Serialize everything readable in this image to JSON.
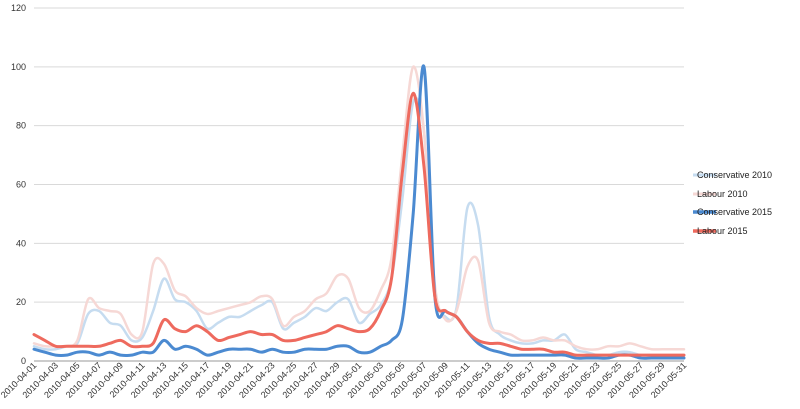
{
  "chart_data": {
    "type": "line",
    "title": "",
    "xlabel": "",
    "ylabel": "",
    "ylim": [
      0,
      120
    ],
    "yticks": [
      0,
      20,
      40,
      60,
      80,
      100,
      120
    ],
    "grid": "horizontal",
    "legend_position": "right",
    "x": [
      "2010-04-01",
      "2010-04-02",
      "2010-04-03",
      "2010-04-04",
      "2010-04-05",
      "2010-04-06",
      "2010-04-07",
      "2010-04-08",
      "2010-04-09",
      "2010-04-10",
      "2010-04-11",
      "2010-04-12",
      "2010-04-13",
      "2010-04-14",
      "2010-04-15",
      "2010-04-16",
      "2010-04-17",
      "2010-04-18",
      "2010-04-19",
      "2010-04-20",
      "2010-04-21",
      "2010-04-22",
      "2010-04-23",
      "2010-04-24",
      "2010-04-25",
      "2010-04-26",
      "2010-04-27",
      "2010-04-28",
      "2010-04-29",
      "2010-04-30",
      "2010-05-01",
      "2010-05-02",
      "2010-05-03",
      "2010-05-04",
      "2010-05-05",
      "2010-05-06",
      "2010-05-07",
      "2010-05-08",
      "2010-05-09",
      "2010-05-10",
      "2010-05-11",
      "2010-05-12",
      "2010-05-13",
      "2010-05-14",
      "2010-05-15",
      "2010-05-16",
      "2010-05-17",
      "2010-05-18",
      "2010-05-19",
      "2010-05-20",
      "2010-05-21",
      "2010-05-22",
      "2010-05-23",
      "2010-05-24",
      "2010-05-25",
      "2010-05-26",
      "2010-05-27",
      "2010-05-28",
      "2010-05-29",
      "2010-05-30",
      "2010-05-31"
    ],
    "xticklabels": [
      "2010-04-01",
      "2010-04-03",
      "2010-04-05",
      "2010-04-07",
      "2010-04-09",
      "2010-04-11",
      "2010-04-13",
      "2010-04-15",
      "2010-04-17",
      "2010-04-19",
      "2010-04-21",
      "2010-04-23",
      "2010-04-25",
      "2010-04-27",
      "2010-04-29",
      "2010-05-01",
      "2010-05-03",
      "2010-05-05",
      "2010-05-07",
      "2010-05-09",
      "2010-05-11",
      "2010-05-13",
      "2010-05-15",
      "2010-05-17",
      "2010-05-19",
      "2010-05-21",
      "2010-05-23",
      "2010-05-25",
      "2010-05-27",
      "2010-05-29",
      "2010-05-31"
    ],
    "series": [
      {
        "name": "Conservative 2010",
        "color": "#c6dcf0",
        "width": 2.5,
        "values": [
          5,
          4,
          4,
          5,
          6,
          16,
          17,
          13,
          12,
          7,
          8,
          17,
          28,
          21,
          20,
          17,
          11,
          13,
          15,
          15,
          17,
          19,
          20,
          11,
          13,
          15,
          18,
          17,
          20,
          21,
          13,
          16,
          19,
          28,
          55,
          88,
          78,
          25,
          15,
          18,
          52,
          46,
          15,
          9,
          7,
          6,
          6,
          7,
          7,
          9,
          4,
          3,
          2,
          2,
          3,
          3,
          2,
          2,
          1,
          1,
          1
        ]
      },
      {
        "name": "Labour 2010",
        "color": "#f6d8d5",
        "width": 2.5,
        "values": [
          6,
          5,
          5,
          5,
          7,
          21,
          18,
          17,
          16,
          9,
          10,
          33,
          33,
          24,
          22,
          18,
          16,
          17,
          18,
          19,
          20,
          22,
          21,
          12,
          15,
          17,
          21,
          23,
          29,
          28,
          18,
          17,
          24,
          35,
          70,
          100,
          78,
          26,
          14,
          17,
          32,
          34,
          13,
          10,
          9,
          7,
          7,
          8,
          7,
          7,
          5,
          4,
          4,
          5,
          5,
          6,
          5,
          4,
          4,
          4,
          4
        ]
      },
      {
        "name": "Conservative 2015",
        "color": "#4b8ad1",
        "width": 3,
        "values": [
          4,
          3,
          2,
          2,
          3,
          3,
          2,
          3,
          2,
          2,
          3,
          3,
          7,
          4,
          5,
          4,
          2,
          3,
          4,
          4,
          4,
          3,
          4,
          3,
          3,
          4,
          4,
          4,
          5,
          5,
          3,
          3,
          5,
          7,
          14,
          50,
          100,
          22,
          17,
          15,
          10,
          6,
          4,
          3,
          2,
          2,
          2,
          2,
          2,
          2,
          1,
          1,
          1,
          1,
          2,
          2,
          1,
          1,
          1,
          1,
          1
        ]
      },
      {
        "name": "Labour 2015",
        "color": "#ee6a5e",
        "width": 3,
        "values": [
          9,
          7,
          5,
          5,
          5,
          5,
          5,
          6,
          7,
          5,
          5,
          6,
          14,
          11,
          10,
          12,
          10,
          7,
          8,
          9,
          10,
          9,
          9,
          7,
          7,
          8,
          9,
          10,
          12,
          11,
          10,
          11,
          17,
          28,
          64,
          91,
          66,
          22,
          17,
          15,
          10,
          7,
          6,
          6,
          5,
          4,
          4,
          4,
          3,
          3,
          2,
          2,
          2,
          2,
          2,
          2,
          2,
          2,
          2,
          2,
          2
        ]
      }
    ]
  }
}
